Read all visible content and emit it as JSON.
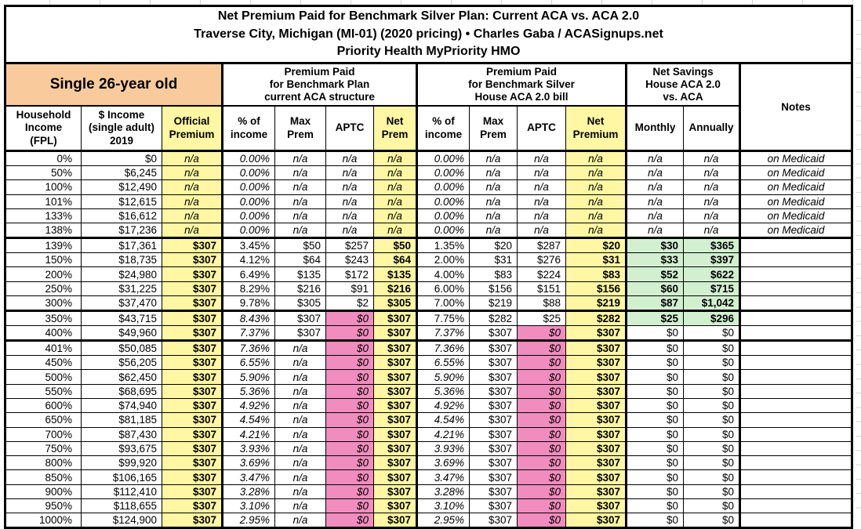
{
  "title": {
    "line1": "Net Premium Paid for Benchmark Silver Plan: Current ACA vs. ACA 2.0",
    "line2": "Traverse City, Michigan (MI-01) (2020 pricing) • Charles Gaba / ACASignups.net",
    "line3": "Priority Health MyPriority HMO"
  },
  "groups": {
    "person": "Single 26-year old",
    "current_aca": [
      "Premium Paid",
      "for Benchmark Plan",
      "current ACA structure"
    ],
    "aca2": [
      "Premium Paid",
      "for Benchmark Silver",
      "House ACA 2.0 bill"
    ],
    "savings": [
      "Net Savings",
      "House ACA 2.0",
      "vs. ACA"
    ],
    "notes": "Notes"
  },
  "columns": [
    [
      "Household",
      "Income",
      "(FPL)"
    ],
    [
      "$ Income",
      "(single adult)",
      "2019"
    ],
    [
      "Official",
      "Premium"
    ],
    [
      "% of",
      "income"
    ],
    [
      "Max",
      "Prem"
    ],
    [
      "APTC"
    ],
    [
      "Net",
      "Prem"
    ],
    [
      "% of",
      "income"
    ],
    [
      "Max",
      "Prem"
    ],
    [
      "APTC"
    ],
    [
      "Net",
      "Premium"
    ],
    [
      "Monthly"
    ],
    [
      "Annually"
    ]
  ],
  "colors": {
    "header_orange": "#F9CB9C",
    "highlight_yellow": "#FFF7A3",
    "no_subsidy_pink": "#F08CBE",
    "savings_green": "#D2F0D0",
    "grid_black": "#000000"
  },
  "rows": [
    {
      "fpl": "0%",
      "income": "$0",
      "official": "n/a",
      "aca": {
        "pct": "0.00%",
        "max": "n/a",
        "aptc": "n/a",
        "net": "n/a"
      },
      "aca2": {
        "pct": "0.00%",
        "max": "n/a",
        "aptc": "n/a",
        "net": "n/a"
      },
      "savings": {
        "monthly": "n/a",
        "annually": "n/a"
      },
      "note": "on Medicaid"
    },
    {
      "fpl": "50%",
      "income": "$6,245",
      "official": "n/a",
      "aca": {
        "pct": "0.00%",
        "max": "n/a",
        "aptc": "n/a",
        "net": "n/a"
      },
      "aca2": {
        "pct": "0.00%",
        "max": "n/a",
        "aptc": "n/a",
        "net": "n/a"
      },
      "savings": {
        "monthly": "n/a",
        "annually": "n/a"
      },
      "note": "on Medicaid"
    },
    {
      "fpl": "100%",
      "income": "$12,490",
      "official": "n/a",
      "aca": {
        "pct": "0.00%",
        "max": "n/a",
        "aptc": "n/a",
        "net": "n/a"
      },
      "aca2": {
        "pct": "0.00%",
        "max": "n/a",
        "aptc": "n/a",
        "net": "n/a"
      },
      "savings": {
        "monthly": "n/a",
        "annually": "n/a"
      },
      "note": "on Medicaid"
    },
    {
      "fpl": "101%",
      "income": "$12,615",
      "official": "n/a",
      "aca": {
        "pct": "0.00%",
        "max": "n/a",
        "aptc": "n/a",
        "net": "n/a"
      },
      "aca2": {
        "pct": "0.00%",
        "max": "n/a",
        "aptc": "n/a",
        "net": "n/a"
      },
      "savings": {
        "monthly": "n/a",
        "annually": "n/a"
      },
      "note": "on Medicaid"
    },
    {
      "fpl": "133%",
      "income": "$16,612",
      "official": "n/a",
      "aca": {
        "pct": "0.00%",
        "max": "n/a",
        "aptc": "n/a",
        "net": "n/a"
      },
      "aca2": {
        "pct": "0.00%",
        "max": "n/a",
        "aptc": "n/a",
        "net": "n/a"
      },
      "savings": {
        "monthly": "n/a",
        "annually": "n/a"
      },
      "note": "on Medicaid"
    },
    {
      "fpl": "138%",
      "income": "$17,236",
      "official": "n/a",
      "aca": {
        "pct": "0.00%",
        "max": "n/a",
        "aptc": "n/a",
        "net": "n/a"
      },
      "aca2": {
        "pct": "0.00%",
        "max": "n/a",
        "aptc": "n/a",
        "net": "n/a"
      },
      "savings": {
        "monthly": "n/a",
        "annually": "n/a"
      },
      "note": "on Medicaid"
    },
    {
      "fpl": "139%",
      "income": "$17,361",
      "official": "$307",
      "aca": {
        "pct": "3.45%",
        "max": "$50",
        "aptc": "$257",
        "net": "$50"
      },
      "aca2": {
        "pct": "1.35%",
        "max": "$20",
        "aptc": "$287",
        "net": "$20"
      },
      "savings": {
        "monthly": "$30",
        "annually": "$365"
      },
      "note": ""
    },
    {
      "fpl": "150%",
      "income": "$18,735",
      "official": "$307",
      "aca": {
        "pct": "4.12%",
        "max": "$64",
        "aptc": "$243",
        "net": "$64"
      },
      "aca2": {
        "pct": "2.00%",
        "max": "$31",
        "aptc": "$276",
        "net": "$31"
      },
      "savings": {
        "monthly": "$33",
        "annually": "$397"
      },
      "note": ""
    },
    {
      "fpl": "200%",
      "income": "$24,980",
      "official": "$307",
      "aca": {
        "pct": "6.49%",
        "max": "$135",
        "aptc": "$172",
        "net": "$135"
      },
      "aca2": {
        "pct": "4.00%",
        "max": "$83",
        "aptc": "$224",
        "net": "$83"
      },
      "savings": {
        "monthly": "$52",
        "annually": "$622"
      },
      "note": ""
    },
    {
      "fpl": "250%",
      "income": "$31,225",
      "official": "$307",
      "aca": {
        "pct": "8.29%",
        "max": "$216",
        "aptc": "$91",
        "net": "$216"
      },
      "aca2": {
        "pct": "6.00%",
        "max": "$156",
        "aptc": "$151",
        "net": "$156"
      },
      "savings": {
        "monthly": "$60",
        "annually": "$715"
      },
      "note": ""
    },
    {
      "fpl": "300%",
      "income": "$37,470",
      "official": "$307",
      "aca": {
        "pct": "9.78%",
        "max": "$305",
        "aptc": "$2",
        "net": "$305"
      },
      "aca2": {
        "pct": "7.00%",
        "max": "$219",
        "aptc": "$88",
        "net": "$219"
      },
      "savings": {
        "monthly": "$87",
        "annually": "$1,042"
      },
      "note": ""
    },
    {
      "fpl": "350%",
      "income": "$43,715",
      "official": "$307",
      "aca": {
        "pct": "8.43%",
        "max": "$307",
        "aptc": "$0",
        "net": "$307"
      },
      "aca2": {
        "pct": "7.75%",
        "max": "$282",
        "aptc": "$25",
        "net": "$282"
      },
      "savings": {
        "monthly": "$25",
        "annually": "$296"
      },
      "note": ""
    },
    {
      "fpl": "400%",
      "income": "$49,960",
      "official": "$307",
      "aca": {
        "pct": "7.37%",
        "max": "$307",
        "aptc": "$0",
        "net": "$307"
      },
      "aca2": {
        "pct": "7.37%",
        "max": "$307",
        "aptc": "$0",
        "net": "$307"
      },
      "savings": {
        "monthly": "$0",
        "annually": "$0"
      },
      "note": ""
    },
    {
      "fpl": "401%",
      "income": "$50,085",
      "official": "$307",
      "aca": {
        "pct": "7.36%",
        "max": "n/a",
        "aptc": "$0",
        "net": "$307"
      },
      "aca2": {
        "pct": "7.36%",
        "max": "$307",
        "aptc": "$0",
        "net": "$307"
      },
      "savings": {
        "monthly": "$0",
        "annually": "$0"
      },
      "note": ""
    },
    {
      "fpl": "450%",
      "income": "$56,205",
      "official": "$307",
      "aca": {
        "pct": "6.55%",
        "max": "n/a",
        "aptc": "$0",
        "net": "$307"
      },
      "aca2": {
        "pct": "6.55%",
        "max": "$307",
        "aptc": "$0",
        "net": "$307"
      },
      "savings": {
        "monthly": "$0",
        "annually": "$0"
      },
      "note": ""
    },
    {
      "fpl": "500%",
      "income": "$62,450",
      "official": "$307",
      "aca": {
        "pct": "5.90%",
        "max": "n/a",
        "aptc": "$0",
        "net": "$307"
      },
      "aca2": {
        "pct": "5.90%",
        "max": "$307",
        "aptc": "$0",
        "net": "$307"
      },
      "savings": {
        "monthly": "$0",
        "annually": "$0"
      },
      "note": ""
    },
    {
      "fpl": "550%",
      "income": "$68,695",
      "official": "$307",
      "aca": {
        "pct": "5.36%",
        "max": "n/a",
        "aptc": "$0",
        "net": "$307"
      },
      "aca2": {
        "pct": "5.36%",
        "max": "$307",
        "aptc": "$0",
        "net": "$307"
      },
      "savings": {
        "monthly": "$0",
        "annually": "$0"
      },
      "note": ""
    },
    {
      "fpl": "600%",
      "income": "$74,940",
      "official": "$307",
      "aca": {
        "pct": "4.92%",
        "max": "n/a",
        "aptc": "$0",
        "net": "$307"
      },
      "aca2": {
        "pct": "4.92%",
        "max": "$307",
        "aptc": "$0",
        "net": "$307"
      },
      "savings": {
        "monthly": "$0",
        "annually": "$0"
      },
      "note": ""
    },
    {
      "fpl": "650%",
      "income": "$81,185",
      "official": "$307",
      "aca": {
        "pct": "4.54%",
        "max": "n/a",
        "aptc": "$0",
        "net": "$307"
      },
      "aca2": {
        "pct": "4.54%",
        "max": "$307",
        "aptc": "$0",
        "net": "$307"
      },
      "savings": {
        "monthly": "$0",
        "annually": "$0"
      },
      "note": ""
    },
    {
      "fpl": "700%",
      "income": "$87,430",
      "official": "$307",
      "aca": {
        "pct": "4.21%",
        "max": "n/a",
        "aptc": "$0",
        "net": "$307"
      },
      "aca2": {
        "pct": "4.21%",
        "max": "$307",
        "aptc": "$0",
        "net": "$307"
      },
      "savings": {
        "monthly": "$0",
        "annually": "$0"
      },
      "note": ""
    },
    {
      "fpl": "750%",
      "income": "$93,675",
      "official": "$307",
      "aca": {
        "pct": "3.93%",
        "max": "n/a",
        "aptc": "$0",
        "net": "$307"
      },
      "aca2": {
        "pct": "3.93%",
        "max": "$307",
        "aptc": "$0",
        "net": "$307"
      },
      "savings": {
        "monthly": "$0",
        "annually": "$0"
      },
      "note": ""
    },
    {
      "fpl": "800%",
      "income": "$99,920",
      "official": "$307",
      "aca": {
        "pct": "3.69%",
        "max": "n/a",
        "aptc": "$0",
        "net": "$307"
      },
      "aca2": {
        "pct": "3.69%",
        "max": "$307",
        "aptc": "$0",
        "net": "$307"
      },
      "savings": {
        "monthly": "$0",
        "annually": "$0"
      },
      "note": ""
    },
    {
      "fpl": "850%",
      "income": "$106,165",
      "official": "$307",
      "aca": {
        "pct": "3.47%",
        "max": "n/a",
        "aptc": "$0",
        "net": "$307"
      },
      "aca2": {
        "pct": "3.47%",
        "max": "$307",
        "aptc": "$0",
        "net": "$307"
      },
      "savings": {
        "monthly": "$0",
        "annually": "$0"
      },
      "note": ""
    },
    {
      "fpl": "900%",
      "income": "$112,410",
      "official": "$307",
      "aca": {
        "pct": "3.28%",
        "max": "n/a",
        "aptc": "$0",
        "net": "$307"
      },
      "aca2": {
        "pct": "3.28%",
        "max": "$307",
        "aptc": "$0",
        "net": "$307"
      },
      "savings": {
        "monthly": "$0",
        "annually": "$0"
      },
      "note": ""
    },
    {
      "fpl": "950%",
      "income": "$118,655",
      "official": "$307",
      "aca": {
        "pct": "3.10%",
        "max": "n/a",
        "aptc": "$0",
        "net": "$307"
      },
      "aca2": {
        "pct": "3.10%",
        "max": "$307",
        "aptc": "$0",
        "net": "$307"
      },
      "savings": {
        "monthly": "$0",
        "annually": "$0"
      },
      "note": ""
    },
    {
      "fpl": "1000%",
      "income": "$124,900",
      "official": "$307",
      "aca": {
        "pct": "2.95%",
        "max": "n/a",
        "aptc": "$0",
        "net": "$307"
      },
      "aca2": {
        "pct": "2.95%",
        "max": "$307",
        "aptc": "$0",
        "net": "$307"
      },
      "savings": {
        "monthly": "$0",
        "annually": "$0"
      },
      "note": ""
    }
  ]
}
